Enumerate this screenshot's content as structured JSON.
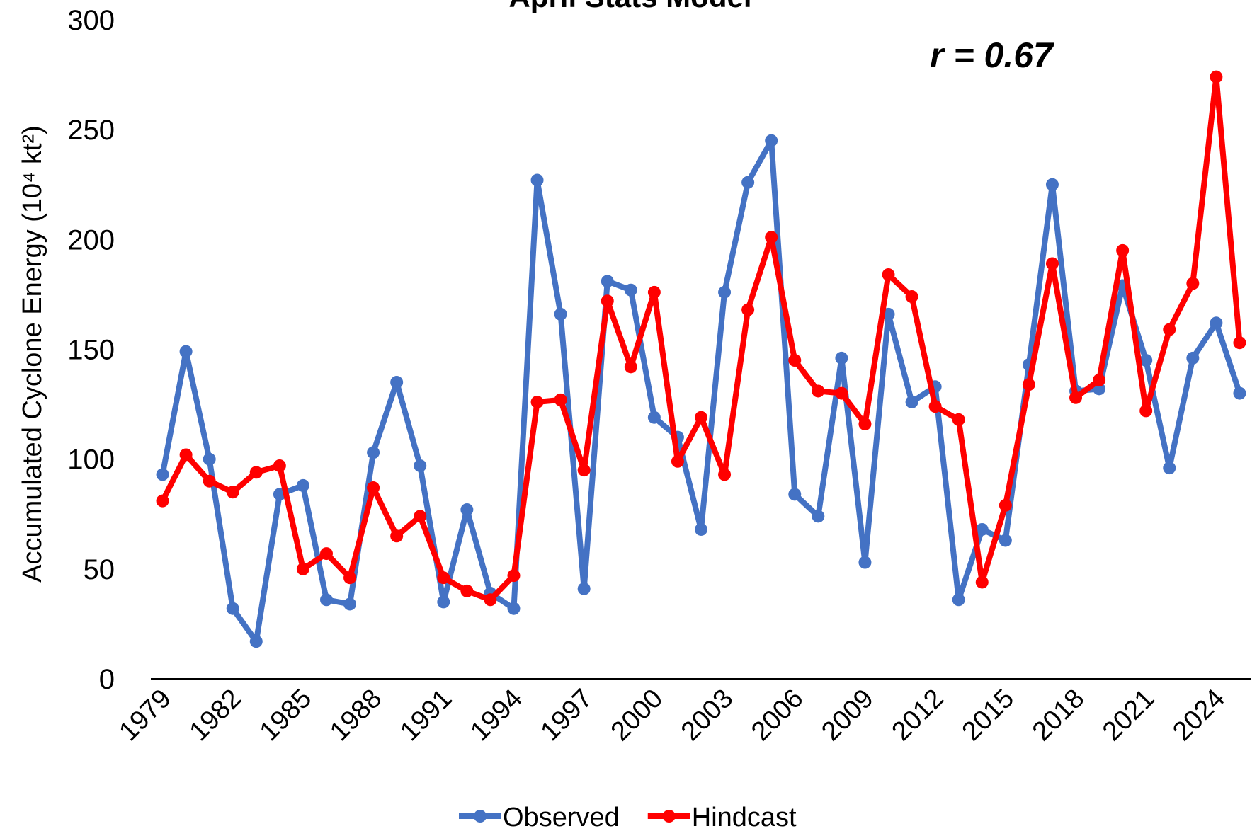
{
  "chart_data": {
    "type": "line",
    "title": "April Stats Model",
    "annotation": "r = 0.67",
    "y_label": "Accumulated Cyclone Energy (10⁴ kt²)",
    "categories": [
      "1979",
      null,
      null,
      "1982",
      null,
      null,
      "1985",
      null,
      null,
      "1988",
      null,
      null,
      "1991",
      null,
      null,
      "1994",
      null,
      null,
      "1997",
      null,
      null,
      "2000",
      null,
      null,
      "2003",
      null,
      null,
      "2006",
      null,
      null,
      "2009",
      null,
      null,
      "2012",
      null,
      null,
      "2015",
      null,
      null,
      "2018",
      null,
      null,
      "2021",
      null,
      null,
      "2024",
      null
    ],
    "series": [
      {
        "name": "Observed",
        "color": "#4472c4",
        "values": [
          93,
          149,
          100,
          32,
          17,
          84,
          88,
          36,
          34,
          103,
          135,
          97,
          35,
          77,
          39,
          32,
          227,
          166,
          41,
          181,
          177,
          119,
          110,
          68,
          176,
          226,
          245,
          84,
          74,
          146,
          53,
          166,
          126,
          133,
          36,
          68,
          63,
          143,
          225,
          131,
          132,
          179,
          145,
          96,
          146,
          162,
          130
        ]
      },
      {
        "name": "Hindcast",
        "color": "#ff0000",
        "values": [
          81,
          102,
          90,
          85,
          94,
          97,
          50,
          57,
          46,
          87,
          65,
          74,
          46,
          40,
          36,
          47,
          126,
          127,
          95,
          172,
          142,
          176,
          99,
          119,
          93,
          168,
          201,
          145,
          131,
          130,
          116,
          184,
          174,
          124,
          118,
          44,
          79,
          134,
          189,
          128,
          136,
          195,
          122,
          159,
          180,
          274,
          153
        ]
      }
    ],
    "ylim": [
      0,
      300
    ],
    "yticks": [
      0,
      50,
      100,
      150,
      200,
      250,
      300
    ],
    "grid": false,
    "legend": "bottom"
  }
}
